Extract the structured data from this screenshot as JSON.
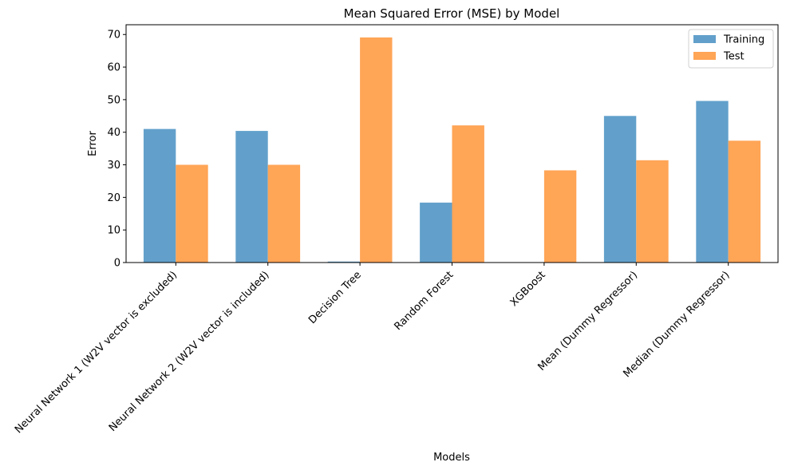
{
  "chart_data": {
    "type": "bar",
    "title": "Mean Squared Error (MSE) by Model",
    "xlabel": "Models",
    "ylabel": "Error",
    "categories": [
      "Neural Network 1 (W2V vector is excluded)",
      "Neural Network 2 (W2V vector is included)",
      "Decision Tree",
      "Random Forest",
      "XGBoost",
      "Mean (Dummy Regressor)",
      "Median (Dummy Regressor)"
    ],
    "series": [
      {
        "name": "Training",
        "color": "#62a0cb",
        "values": [
          41.0,
          40.4,
          0.3,
          18.4,
          0.1,
          45.0,
          49.6
        ]
      },
      {
        "name": "Test",
        "color": "#ffa556",
        "values": [
          30.0,
          30.0,
          69.1,
          42.1,
          28.3,
          31.4,
          37.4
        ]
      }
    ],
    "ylim": [
      0,
      73.0
    ],
    "yticks": [
      0,
      10,
      20,
      30,
      40,
      50,
      60,
      70
    ],
    "grid": false,
    "legend": "top-right"
  }
}
